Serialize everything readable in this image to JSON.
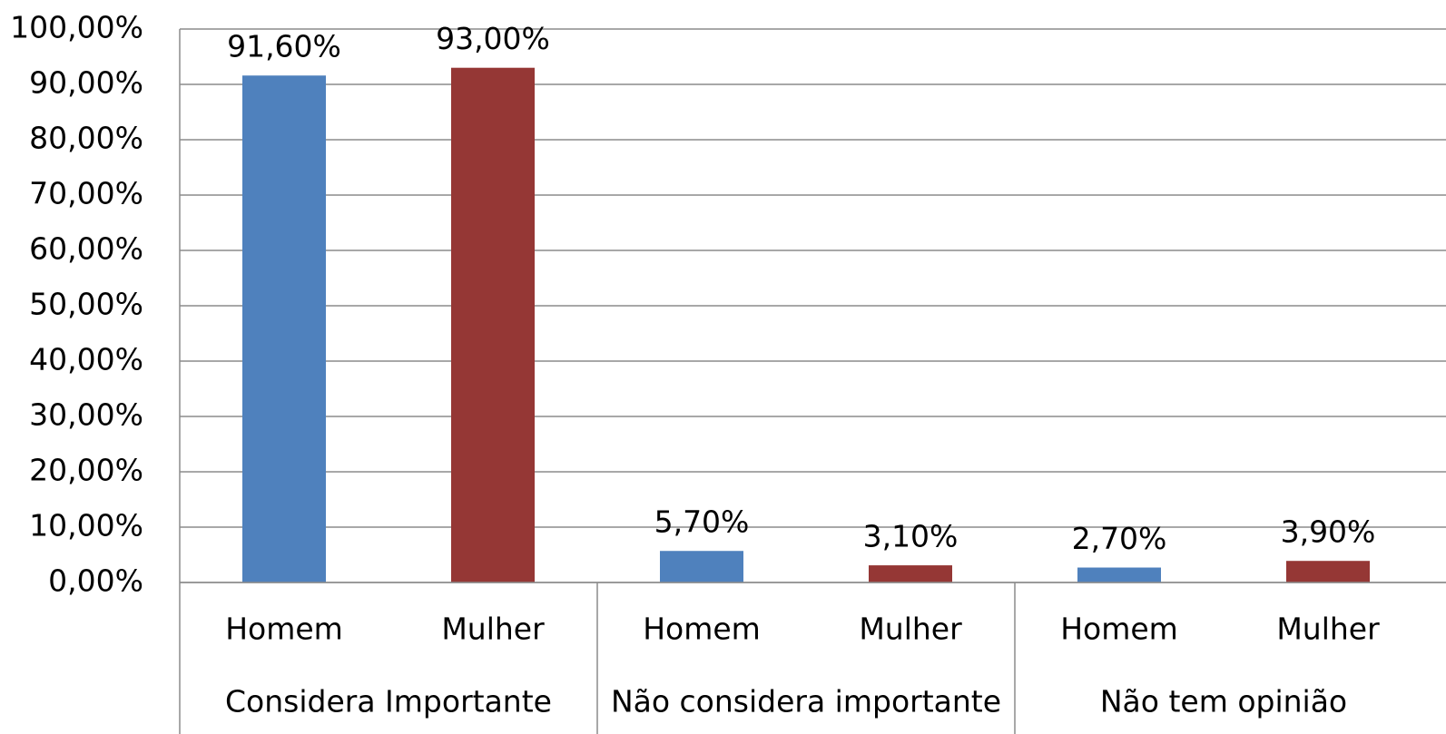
{
  "chart_data": {
    "type": "bar",
    "categories": [
      "Homem",
      "Mulher",
      "Homem",
      "Mulher",
      "Homem",
      "Mulher"
    ],
    "groups": [
      "Considera Importante",
      "Não considera importante",
      "Não tem opinião"
    ],
    "values": [
      91.6,
      93.0,
      5.7,
      3.1,
      2.7,
      3.9
    ],
    "value_labels": [
      "91,60%",
      "93,00%",
      "5,70%",
      "3,10%",
      "2,70%",
      "3,90%"
    ],
    "colors": [
      "#4f81bd",
      "#953735",
      "#4f81bd",
      "#953735",
      "#4f81bd",
      "#953735"
    ],
    "ylim": [
      0,
      100
    ],
    "yticks": [
      {
        "value": 0,
        "label": "0,00%"
      },
      {
        "value": 10,
        "label": "10,00%"
      },
      {
        "value": 20,
        "label": "20,00%"
      },
      {
        "value": 30,
        "label": "30,00%"
      },
      {
        "value": 40,
        "label": "40,00%"
      },
      {
        "value": 50,
        "label": "50,00%"
      },
      {
        "value": 60,
        "label": "60,00%"
      },
      {
        "value": 70,
        "label": "70,00%"
      },
      {
        "value": 80,
        "label": "80,00%"
      },
      {
        "value": 90,
        "label": "90,00%"
      },
      {
        "value": 100,
        "label": "100,00%"
      }
    ],
    "grid": true
  }
}
